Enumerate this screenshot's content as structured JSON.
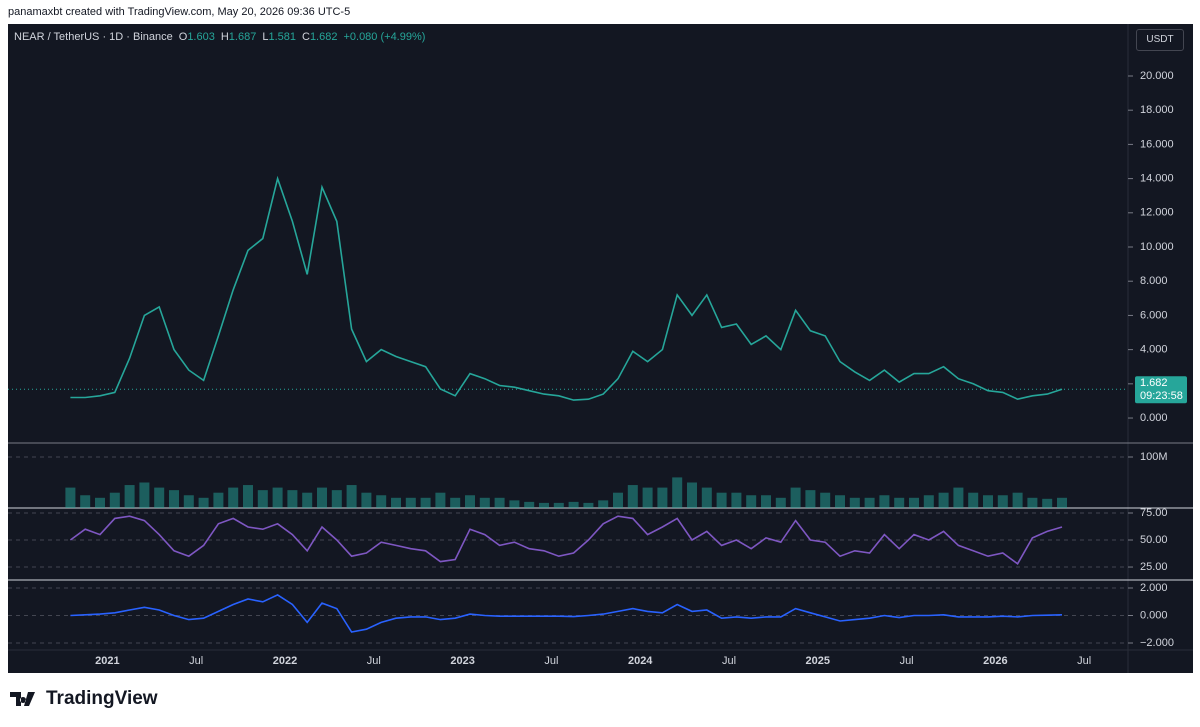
{
  "header": {
    "credit": "panamaxbt created with TradingView.com, May 20, 2026 09:36 UTC-5"
  },
  "chart_data": [
    {
      "type": "line",
      "title": "NEAR / TetherUS · 1D · Binance",
      "ohlc": [
        {
          "label": "O",
          "value": 1.603
        },
        {
          "label": "H",
          "value": 1.687
        },
        {
          "label": "L",
          "value": 1.581
        },
        {
          "label": "C",
          "value": 1.682
        }
      ],
      "change": "+0.080 (+4.99%)",
      "currency": "USDT",
      "categories": [
        null,
        null,
        null,
        "2021",
        null,
        null,
        null,
        null,
        null,
        "Jul",
        null,
        null,
        null,
        null,
        null,
        "2022",
        null,
        null,
        null,
        null,
        null,
        "Jul",
        null,
        null,
        null,
        null,
        null,
        "2023",
        null,
        null,
        null,
        null,
        null,
        "Jul",
        null,
        null,
        null,
        null,
        null,
        "2024",
        null,
        null,
        null,
        null,
        null,
        "Jul",
        null,
        null,
        null,
        null,
        null,
        "2025",
        null,
        null,
        null,
        null,
        null,
        "Jul",
        null,
        null,
        null,
        null,
        null,
        "2026",
        null,
        null,
        null,
        null,
        null,
        "Jul",
        null
      ],
      "values": [
        1.2,
        1.2,
        1.3,
        1.5,
        3.5,
        6,
        6.5,
        4,
        2.8,
        2.2,
        4.8,
        7.5,
        9.8,
        10.5,
        14,
        11.5,
        8.4,
        13.5,
        11.5,
        5.2,
        3.3,
        4,
        3.6,
        3.3,
        3,
        1.7,
        1.3,
        2.6,
        2.3,
        1.9,
        1.8,
        1.6,
        1.4,
        1.3,
        1.05,
        1.1,
        1.4,
        2.3,
        3.9,
        3.3,
        4,
        7.2,
        6,
        7.2,
        5.3,
        5.5,
        4.3,
        4.8,
        4,
        6.3,
        5.1,
        4.8,
        3.3,
        2.7,
        2.2,
        2.8,
        2.1,
        2.6,
        2.6,
        3,
        2.3,
        2,
        1.6,
        1.5,
        1.1,
        1.3,
        1.4,
        1.682,
        null,
        null,
        null
      ],
      "color": "#26a69a",
      "ylim": [
        -1.46,
        23.04
      ],
      "yticks": [
        {
          "value": 0,
          "label": "0.000"
        },
        {
          "value": 2,
          "label": "2.000"
        },
        {
          "value": 4,
          "label": "4.000"
        },
        {
          "value": 6,
          "label": "6.000"
        },
        {
          "value": 8,
          "label": "8.000"
        },
        {
          "value": 10,
          "label": "10.000"
        },
        {
          "value": 12,
          "label": "12.000"
        },
        {
          "value": 14,
          "label": "14.000"
        },
        {
          "value": 16,
          "label": "16.000"
        },
        {
          "value": 18,
          "label": "18.000"
        },
        {
          "value": 20,
          "label": "20.000"
        }
      ],
      "last_price": 1.682,
      "countdown": "09:23:58"
    },
    {
      "type": "bar",
      "values": [
        40000000,
        25000000,
        20000000,
        30000000,
        45000000,
        50000000,
        40000000,
        35000000,
        25000000,
        20000000,
        30000000,
        40000000,
        45000000,
        35000000,
        40000000,
        35000000,
        30000000,
        40000000,
        35000000,
        45000000,
        30000000,
        25000000,
        20000000,
        20000000,
        20000000,
        30000000,
        20000000,
        25000000,
        20000000,
        20000000,
        15000000,
        12000000,
        10000000,
        10000000,
        12000000,
        10000000,
        15000000,
        30000000,
        45000000,
        40000000,
        40000000,
        60000000,
        50000000,
        40000000,
        30000000,
        30000000,
        25000000,
        25000000,
        20000000,
        40000000,
        35000000,
        30000000,
        25000000,
        20000000,
        20000000,
        25000000,
        20000000,
        20000000,
        25000000,
        30000000,
        40000000,
        30000000,
        25000000,
        25000000,
        30000000,
        20000000,
        18000000,
        20000000,
        null,
        null,
        null
      ],
      "color": "#26a69a",
      "ylim": [
        0,
        125500000
      ],
      "yticks": [
        {
          "value": 100000000,
          "label": "100M"
        }
      ]
    },
    {
      "type": "line",
      "values": [
        50,
        60,
        55,
        70,
        72,
        68,
        55,
        40,
        35,
        45,
        65,
        70,
        62,
        60,
        65,
        55,
        40,
        62,
        50,
        35,
        38,
        48,
        45,
        42,
        40,
        30,
        32,
        60,
        55,
        45,
        48,
        42,
        40,
        35,
        38,
        50,
        65,
        72,
        70,
        55,
        62,
        70,
        50,
        58,
        45,
        50,
        42,
        52,
        48,
        68,
        50,
        48,
        35,
        40,
        38,
        55,
        42,
        55,
        50,
        58,
        45,
        40,
        35,
        38,
        28,
        52,
        58,
        62,
        null,
        null,
        null
      ],
      "color": "#7e57c2",
      "ylim": [
        13,
        78.7
      ],
      "yticks": [
        {
          "value": 25,
          "label": "25.00"
        },
        {
          "value": 50,
          "label": "50.00"
        },
        {
          "value": 75,
          "label": "75.00"
        }
      ]
    },
    {
      "type": "line",
      "values": [
        0,
        0.05,
        0.1,
        0.2,
        0.4,
        0.6,
        0.4,
        0,
        -0.3,
        -0.2,
        0.3,
        0.8,
        1.2,
        1,
        1.5,
        0.8,
        -0.5,
        0.9,
        0.5,
        -1.2,
        -1,
        -0.5,
        -0.2,
        -0.1,
        -0.1,
        -0.3,
        -0.2,
        0.1,
        0,
        -0.05,
        -0.05,
        -0.05,
        -0.05,
        -0.05,
        -0.08,
        0,
        0.1,
        0.3,
        0.5,
        0.3,
        0.2,
        0.8,
        0.3,
        0.4,
        -0.2,
        -0.1,
        -0.2,
        -0.1,
        -0.1,
        0.5,
        0.2,
        -0.1,
        -0.4,
        -0.3,
        -0.2,
        0,
        -0.15,
        0,
        0,
        0.05,
        -0.1,
        -0.1,
        -0.1,
        -0.05,
        -0.1,
        0,
        0.02,
        0.05,
        null,
        null,
        null
      ],
      "color": "#2962ff",
      "ylim": [
        -2.51,
        2.51
      ],
      "yticks": [
        {
          "value": 2,
          "label": "2.000"
        },
        {
          "value": 0,
          "label": "0.000"
        },
        {
          "value": -2,
          "label": "−2.000"
        }
      ]
    }
  ],
  "footer": {
    "brand": "TradingView"
  }
}
